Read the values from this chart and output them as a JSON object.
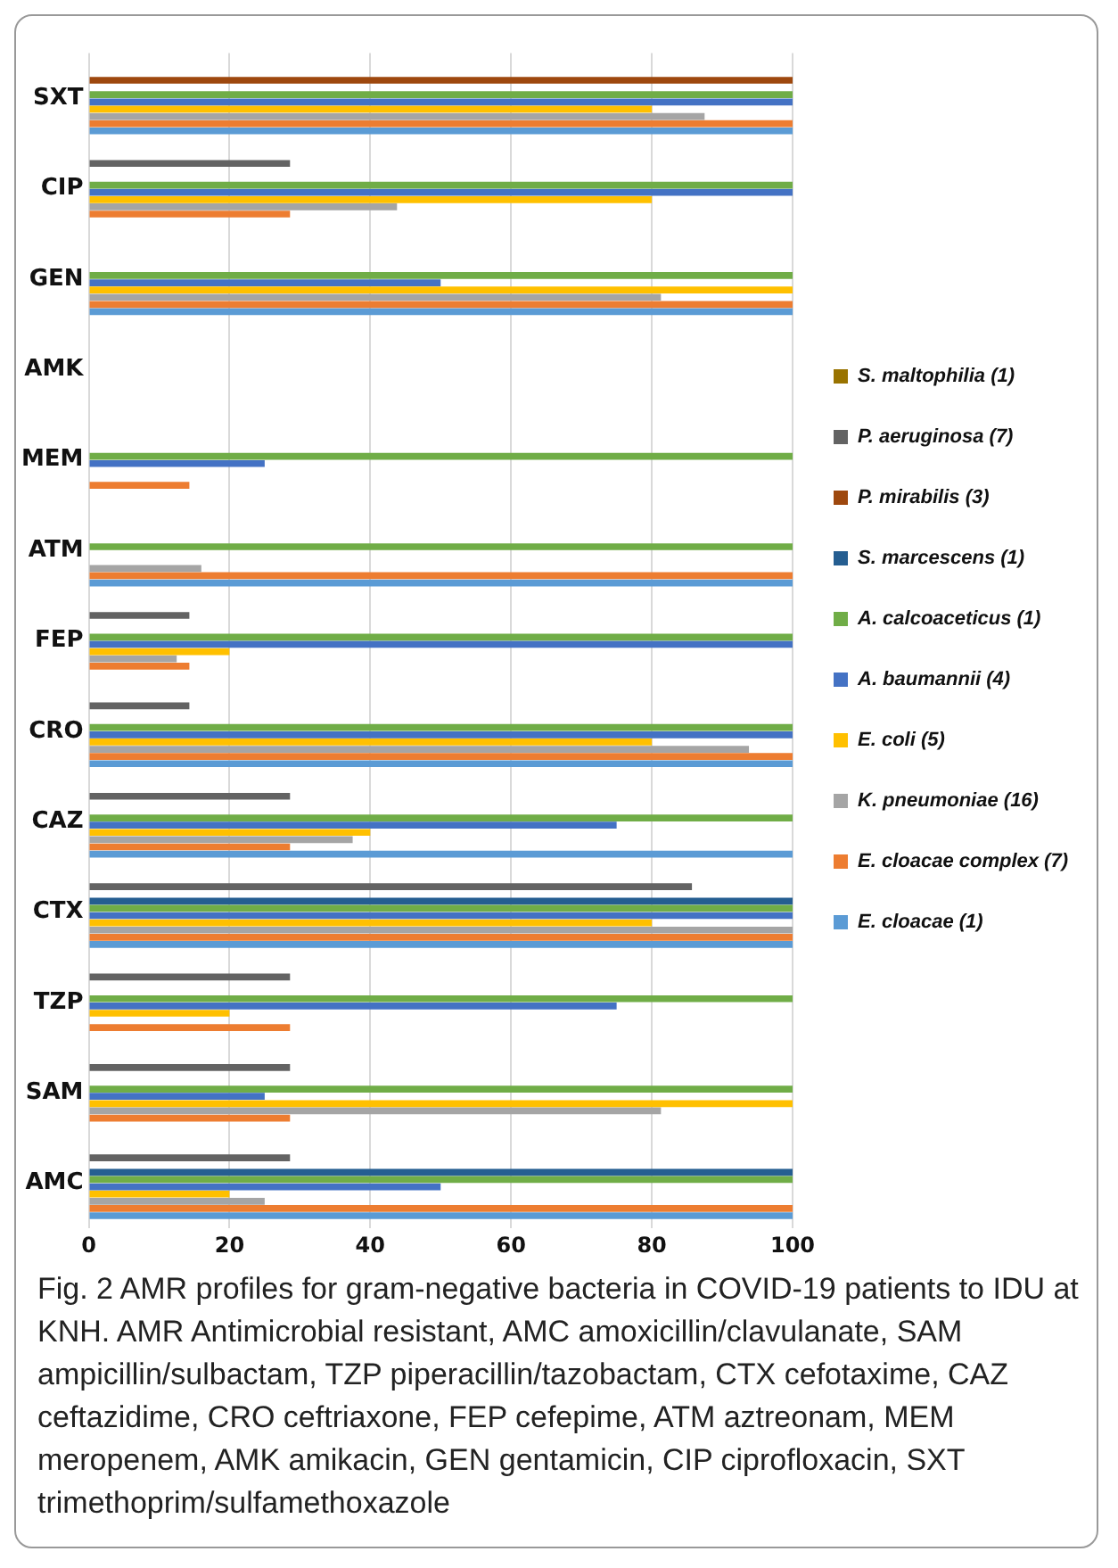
{
  "chart_data": {
    "type": "bar",
    "orientation": "horizontal",
    "categories": [
      "SXT",
      "CIP",
      "GEN",
      "AMK",
      "MEM",
      "ATM",
      "FEP",
      "CRO",
      "CAZ",
      "CTX",
      "TZP",
      "SAM",
      "AMC"
    ],
    "series": [
      {
        "name": "S. maltophilia (1)",
        "color": "#997300",
        "values": [
          0,
          0,
          0,
          0,
          0,
          0,
          0,
          0,
          0,
          0,
          0,
          0,
          0
        ]
      },
      {
        "name": "P. aeruginosa (7)",
        "color": "#636363",
        "values": [
          0,
          28.6,
          0,
          0,
          0,
          0,
          14.3,
          14.3,
          28.6,
          85.7,
          28.6,
          28.6,
          28.6
        ]
      },
      {
        "name": "P. mirabilis (3)",
        "color": "#9e480e",
        "values": [
          100,
          0,
          0,
          0,
          0,
          0,
          0,
          0,
          0,
          0,
          0,
          0,
          0
        ]
      },
      {
        "name": "S. marcescens (1)",
        "color": "#255e91",
        "values": [
          0,
          0,
          0,
          0,
          0,
          0,
          0,
          0,
          0,
          100,
          0,
          0,
          100
        ]
      },
      {
        "name": "A. calcoaceticus (1)",
        "color": "#70ad47",
        "values": [
          100,
          100,
          100,
          0,
          100,
          100,
          100,
          100,
          100,
          100,
          100,
          100,
          100
        ]
      },
      {
        "name": "A. baumannii (4)",
        "color": "#4472c4",
        "values": [
          100,
          100,
          50,
          0,
          25,
          0,
          100,
          100,
          75,
          100,
          75,
          25,
          50
        ]
      },
      {
        "name": "E. coli (5)",
        "color": "#ffc000",
        "values": [
          80,
          80,
          100,
          0,
          0,
          0,
          20,
          80,
          40,
          80,
          20,
          100,
          20
        ]
      },
      {
        "name": "K. pneumoniae (16)",
        "color": "#a5a5a5",
        "values": [
          87.5,
          43.8,
          81.3,
          0,
          0,
          16,
          12.5,
          93.8,
          37.5,
          100,
          0,
          81.3,
          25
        ]
      },
      {
        "name": "E. cloacae complex (7)",
        "color": "#ed7d31",
        "values": [
          100,
          28.6,
          100,
          0,
          14.3,
          100,
          14.3,
          100,
          28.6,
          100,
          28.6,
          28.6,
          100
        ]
      },
      {
        "name": "E. cloacae (1)",
        "color": "#5b9bd5",
        "values": [
          100,
          0,
          100,
          0,
          0,
          100,
          0,
          100,
          100,
          100,
          0,
          0,
          100
        ]
      }
    ],
    "xlim": [
      0,
      100
    ],
    "xticks": [
      0,
      20,
      40,
      60,
      80,
      100
    ],
    "grid": "x",
    "legend": "right",
    "annotations": [
      "Fig. 2 AMR profiles for gram-negative bacteria in COVID-19 patients to IDU at KNH. AMR Antimicrobial resistant, AMC amoxicillin/clavulanate, SAM ampicillin/sulbactam, TZP piperacillin/tazobactam, CTX cefotaxime, CAZ ceftazidime, CRO ceftriaxone, FEP cefepime, ATM aztreonam, MEM meropenem, AMK amikacin, GEN gentamicin, CIP ciprofloxacin, SXT trimethoprim/sulfamethoxazole"
    ]
  }
}
